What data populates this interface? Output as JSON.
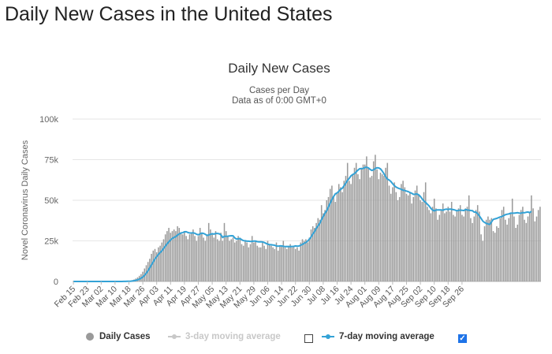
{
  "page_title": "Daily New Cases in the United States",
  "colors": {
    "bars": "#9a9a9a",
    "line": "#33a2d6",
    "grid": "#e6e6e6",
    "legend_dim": "#c8c8c8",
    "checkbox": "#1e73e8"
  },
  "legend": {
    "daily_cases": "Daily Cases",
    "ma3": "3-day moving average",
    "ma7": "7-day moving average",
    "ma3_checked": false,
    "ma7_checked": true
  },
  "chart_data": {
    "type": "bar",
    "title": "Daily New Cases",
    "subtitle": "Cases per Day",
    "subtitle2": "Data as of 0:00 GMT+0",
    "xlabel": "",
    "ylabel": "Novel Coronavirus Daily Cases",
    "ylim": [
      0,
      100000
    ],
    "y_ticks": [
      "0",
      "25k",
      "50k",
      "75k",
      "100k"
    ],
    "x_tick_labels": [
      "Feb 15",
      "Feb 23",
      "Mar 02",
      "Mar 10",
      "Mar 18",
      "Mar 26",
      "Apr 03",
      "Apr 11",
      "Apr 19",
      "Apr 27",
      "May 05",
      "May 13",
      "May 21",
      "May 29",
      "Jun 06",
      "Jun 14",
      "Jun 22",
      "Jun 30",
      "Jul 08",
      "Jul 16",
      "Jul 24",
      "Aug 01",
      "Aug 09",
      "Aug 17",
      "Aug 25",
      "Sep 02",
      "Sep 10",
      "Sep 18",
      "Sep 26"
    ],
    "x_start": "Feb 15",
    "x_end": "Sep 30",
    "grid": true,
    "series": [
      {
        "name": "Daily Cases",
        "type": "bar",
        "values": [
          0,
          0,
          0,
          0,
          0,
          0,
          0,
          0,
          0,
          0,
          0,
          0,
          0,
          0,
          0,
          0,
          0,
          0,
          0,
          0,
          0,
          0,
          0,
          0,
          0,
          0,
          50,
          20,
          80,
          120,
          150,
          200,
          300,
          500,
          800,
          1200,
          1800,
          2500,
          3500,
          4500,
          6000,
          8000,
          10000,
          12000,
          14000,
          17000,
          19000,
          20000,
          18000,
          21000,
          22000,
          24000,
          26000,
          29000,
          31000,
          33000,
          30000,
          31000,
          32000,
          31000,
          34000,
          33000,
          30000,
          29000,
          31000,
          28000,
          26000,
          29000,
          30000,
          32000,
          28000,
          25000,
          28000,
          33000,
          30000,
          27000,
          25000,
          29000,
          36000,
          32000,
          29000,
          27000,
          31000,
          26000,
          25000,
          30000,
          25000,
          36000,
          31000,
          28000,
          25000,
          26000,
          27000,
          24000,
          25000,
          28000,
          27000,
          23000,
          22000,
          25000,
          24000,
          21000,
          23000,
          28000,
          24000,
          25000,
          22000,
          21000,
          21000,
          24000,
          22000,
          20000,
          25000,
          23000,
          22000,
          21000,
          20000,
          24000,
          19000,
          22000,
          22000,
          25000,
          21000,
          20000,
          22000,
          23000,
          21000,
          22000,
          20000,
          21000,
          19000,
          24000,
          26000,
          25000,
          26000,
          24000,
          27000,
          32000,
          34000,
          33000,
          36000,
          39000,
          38000,
          47000,
          42000,
          44000,
          50000,
          52000,
          57000,
          59000,
          52000,
          49000,
          55000,
          60000,
          58000,
          55000,
          62000,
          65000,
          73000,
          62000,
          60000,
          66000,
          70000,
          73000,
          66000,
          63000,
          70000,
          72000,
          72000,
          77000,
          70000,
          64000,
          65000,
          74000,
          78000,
          69000,
          63000,
          67000,
          66000,
          65000,
          70000,
          73000,
          59000,
          54000,
          58000,
          61000,
          55000,
          50000,
          52000,
          60000,
          62000,
          58000,
          54000,
          53000,
          55000,
          48000,
          52000,
          56000,
          59000,
          53000,
          50000,
          49000,
          55000,
          61000,
          46000,
          44000,
          42000,
          46000,
          51000,
          45000,
          38000,
          41000,
          44000,
          48000,
          42000,
          43000,
          46000,
          43000,
          49000,
          41000,
          40000,
          43000,
          45000,
          47000,
          41000,
          40000,
          45000,
          46000,
          53000,
          39000,
          36000,
          40000,
          44000,
          47000,
          43000,
          29000,
          25000,
          34000,
          38000,
          40000,
          38000,
          39000,
          31000,
          30000,
          34000,
          33000,
          39000,
          44000,
          46000,
          38000,
          35000,
          39000,
          42000,
          51000,
          40000,
          33000,
          35000,
          41000,
          44000,
          46000,
          38000,
          36000,
          40000,
          42000,
          53000,
          45000,
          37000,
          40000,
          44000,
          46000
        ]
      },
      {
        "name": "7-day moving average",
        "type": "line",
        "values": [
          0,
          0,
          0,
          0,
          0,
          0,
          0,
          0,
          0,
          0,
          0,
          0,
          0,
          0,
          0,
          0,
          0,
          0,
          0,
          0,
          0,
          0,
          0,
          0,
          0,
          0,
          7,
          10,
          21,
          39,
          60,
          89,
          131,
          203,
          310,
          474,
          697,
          1011,
          1429,
          2014,
          2771,
          3800,
          5077,
          6586,
          8371,
          10243,
          12086,
          13891,
          15171,
          16671,
          17814,
          18886,
          20343,
          21686,
          23171,
          24429,
          25600,
          26486,
          27171,
          27571,
          28586,
          29271,
          29857,
          30071,
          30571,
          30643,
          30143,
          29857,
          29857,
          29971,
          29643,
          29071,
          28714,
          29286,
          29757,
          29586,
          29057,
          28314,
          28628,
          29028,
          29414,
          29171,
          29543,
          29557,
          29386,
          28800,
          27143,
          27743,
          27771,
          27857,
          28000,
          28143,
          28114,
          26857,
          26114,
          26257,
          26428,
          25714,
          25142,
          25071,
          24785,
          24785,
          24629,
          24714,
          24857,
          24857,
          24499,
          24357,
          24442,
          24327,
          23957,
          23470,
          22937,
          22713,
          22613,
          22485,
          22271,
          21857,
          21757,
          21899,
          21899,
          21671,
          21471,
          21571,
          21499,
          21499,
          21571,
          21614,
          21886,
          21771,
          21829,
          22343,
          22829,
          23486,
          24000,
          24914,
          26000,
          27371,
          29200,
          30629,
          32743,
          34286,
          35743,
          38057,
          40029,
          42029,
          43514,
          45914,
          48157,
          50443,
          52314,
          53986,
          54457,
          55528,
          56743,
          57414,
          58914,
          60529,
          62186,
          63514,
          65029,
          65843,
          66414,
          67471,
          68557,
          69400,
          69486,
          69500,
          70143,
          70357,
          69943,
          69014,
          68386,
          68757,
          69586,
          69986,
          69914,
          69329,
          67986,
          66329,
          64486,
          63014,
          62457,
          61557,
          60186,
          58986,
          58114,
          57543,
          57143,
          56743,
          56171,
          56000,
          55628,
          55343,
          54743,
          54300,
          53628,
          53671,
          53928,
          53357,
          52314,
          50857,
          49571,
          48714,
          47571,
          46557,
          45071,
          44014,
          43429,
          43957,
          44014,
          44014,
          44086,
          43857,
          44328,
          44514,
          44299,
          44571,
          44414,
          44200,
          44000,
          43471,
          43800,
          43943,
          43843,
          43643,
          44286,
          43986,
          43900,
          43700,
          43586,
          42729,
          42714,
          41771,
          40371,
          38771,
          37157,
          36329,
          35771,
          35399,
          35128,
          36714,
          38228,
          38557,
          38828,
          39271,
          39714,
          39986,
          40571,
          41114,
          41428,
          41599,
          42028,
          42028,
          42028,
          42200,
          42314,
          42071,
          42014,
          42414,
          42300,
          42614,
          42757,
          42399,
          43200
        ]
      }
    ]
  }
}
